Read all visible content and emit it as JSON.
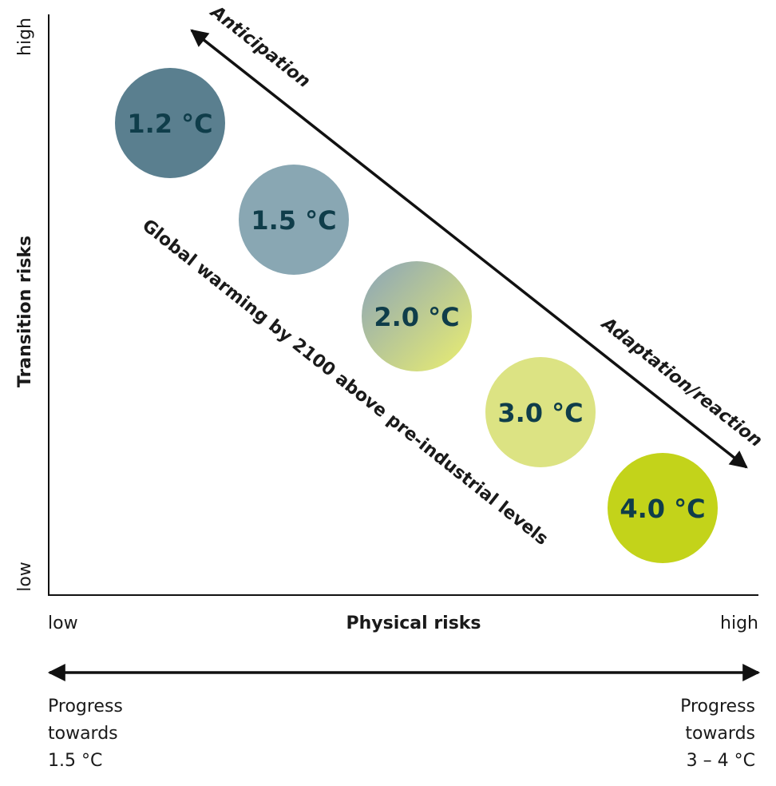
{
  "y_axis": {
    "label": "Transition risks",
    "high": "high",
    "low": "low"
  },
  "x_axis": {
    "label": "Physical risks",
    "low": "low",
    "high": "high"
  },
  "arrows": {
    "anticipation": "Anticipation",
    "adaptation": "Adaptation/reaction"
  },
  "diagonal_label": "Global warming by 2100 above pre-industrial levels",
  "scenarios": [
    {
      "label": "1.2 °C",
      "color": "#5a7f8f"
    },
    {
      "label": "1.5 °C",
      "color": "#89a7b3"
    },
    {
      "label": "2.0 °C",
      "color": "#b8c99a"
    },
    {
      "label": "3.0 °C",
      "color": "#dce383"
    },
    {
      "label": "4.0 °C",
      "color": "#c3d31a"
    }
  ],
  "progress": {
    "left": [
      "Progress",
      "towards",
      "1.5 °C"
    ],
    "right": [
      "Progress",
      "towards",
      "3 – 4 °C"
    ]
  }
}
